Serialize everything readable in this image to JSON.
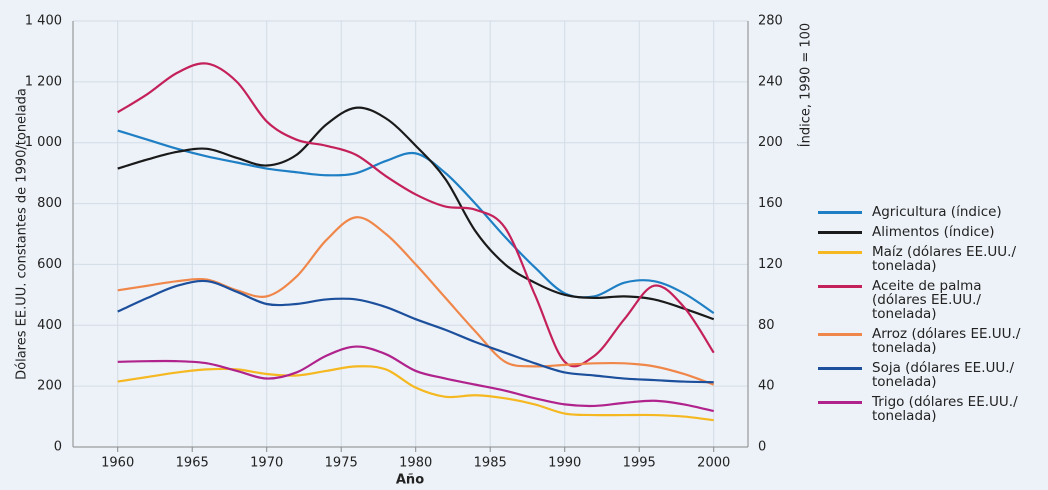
{
  "chart_data": {
    "type": "line",
    "xlabel": "Año",
    "ylabel": "Dólares EE.UU. constantes de 1990/tonelada",
    "y2label": "Índice, 1990 = 100",
    "x": [
      1960,
      1962,
      1964,
      1966,
      1968,
      1970,
      1972,
      1974,
      1976,
      1978,
      1980,
      1982,
      1984,
      1986,
      1988,
      1990,
      1992,
      1994,
      1996,
      1998,
      2000
    ],
    "xlim": [
      1957,
      2002.3
    ],
    "xticks": [
      1960,
      1965,
      1970,
      1975,
      1980,
      1985,
      1990,
      1995,
      2000
    ],
    "ylim": [
      0,
      1400
    ],
    "yticks": [
      0,
      200,
      400,
      600,
      800,
      {
        "value": 1000,
        "label": "1 000"
      },
      {
        "value": 1200,
        "label": "1 200"
      },
      {
        "value": 1400,
        "label": "1 400"
      }
    ],
    "y2lim": [
      0,
      280
    ],
    "y2ticks": [
      0,
      40,
      80,
      120,
      160,
      200,
      240,
      280
    ],
    "grid": true,
    "series": [
      {
        "name": "Agricultura (índice)",
        "color": "#1f7fc4",
        "axis": "y2",
        "values": [
          208,
          202,
          196,
          191,
          187,
          183,
          180.6,
          178.6,
          180,
          188,
          193,
          180,
          160,
          138,
          118,
          101,
          99,
          108,
          109,
          101,
          88
        ]
      },
      {
        "name": "Alimentos (índice)",
        "color": "#1a1a1a",
        "axis": "y2",
        "values": [
          183,
          189,
          194,
          196,
          190,
          185,
          192,
          212,
          223,
          216,
          198,
          176,
          142,
          120,
          108,
          100,
          98,
          99,
          97,
          91,
          84
        ]
      },
      {
        "name": "Maíz (dólares EE.UU./tonelada)",
        "color": "#f5b820",
        "values": [
          215,
          230,
          245,
          255,
          255,
          240,
          235,
          250,
          265,
          255,
          195,
          165,
          170,
          160,
          140,
          110,
          105,
          105,
          105,
          100,
          88
        ]
      },
      {
        "name": "Aceite de palma (dólares EE.UU./tonelada)",
        "color": "#c4215a",
        "values": [
          1100,
          1160,
          1230,
          1260,
          1200,
          1070,
          1010,
          990,
          960,
          890,
          830,
          790,
          780,
          720,
          500,
          280,
          300,
          420,
          530,
          460,
          310
        ]
      },
      {
        "name": "Arroz (dólares EE.UU./tonelada)",
        "color": "#f0874a",
        "values": [
          515,
          530,
          545,
          550,
          515,
          495,
          560,
          680,
          755,
          700,
          600,
          490,
          380,
          280,
          265,
          270,
          275,
          275,
          265,
          240,
          205
        ]
      },
      {
        "name": "Soja (dólares EE.UU./tonelada)",
        "color": "#1c4f9c",
        "values": [
          445,
          490,
          530,
          545,
          510,
          470,
          470,
          485,
          485,
          460,
          420,
          385,
          345,
          310,
          275,
          245,
          235,
          225,
          220,
          215,
          213
        ]
      },
      {
        "name": "Trigo (dólares EE.UU./tonelada)",
        "color": "#b0228c",
        "values": [
          280,
          282,
          282,
          275,
          250,
          225,
          245,
          300,
          330,
          305,
          250,
          225,
          205,
          185,
          160,
          140,
          135,
          145,
          152,
          140,
          118
        ]
      }
    ]
  }
}
